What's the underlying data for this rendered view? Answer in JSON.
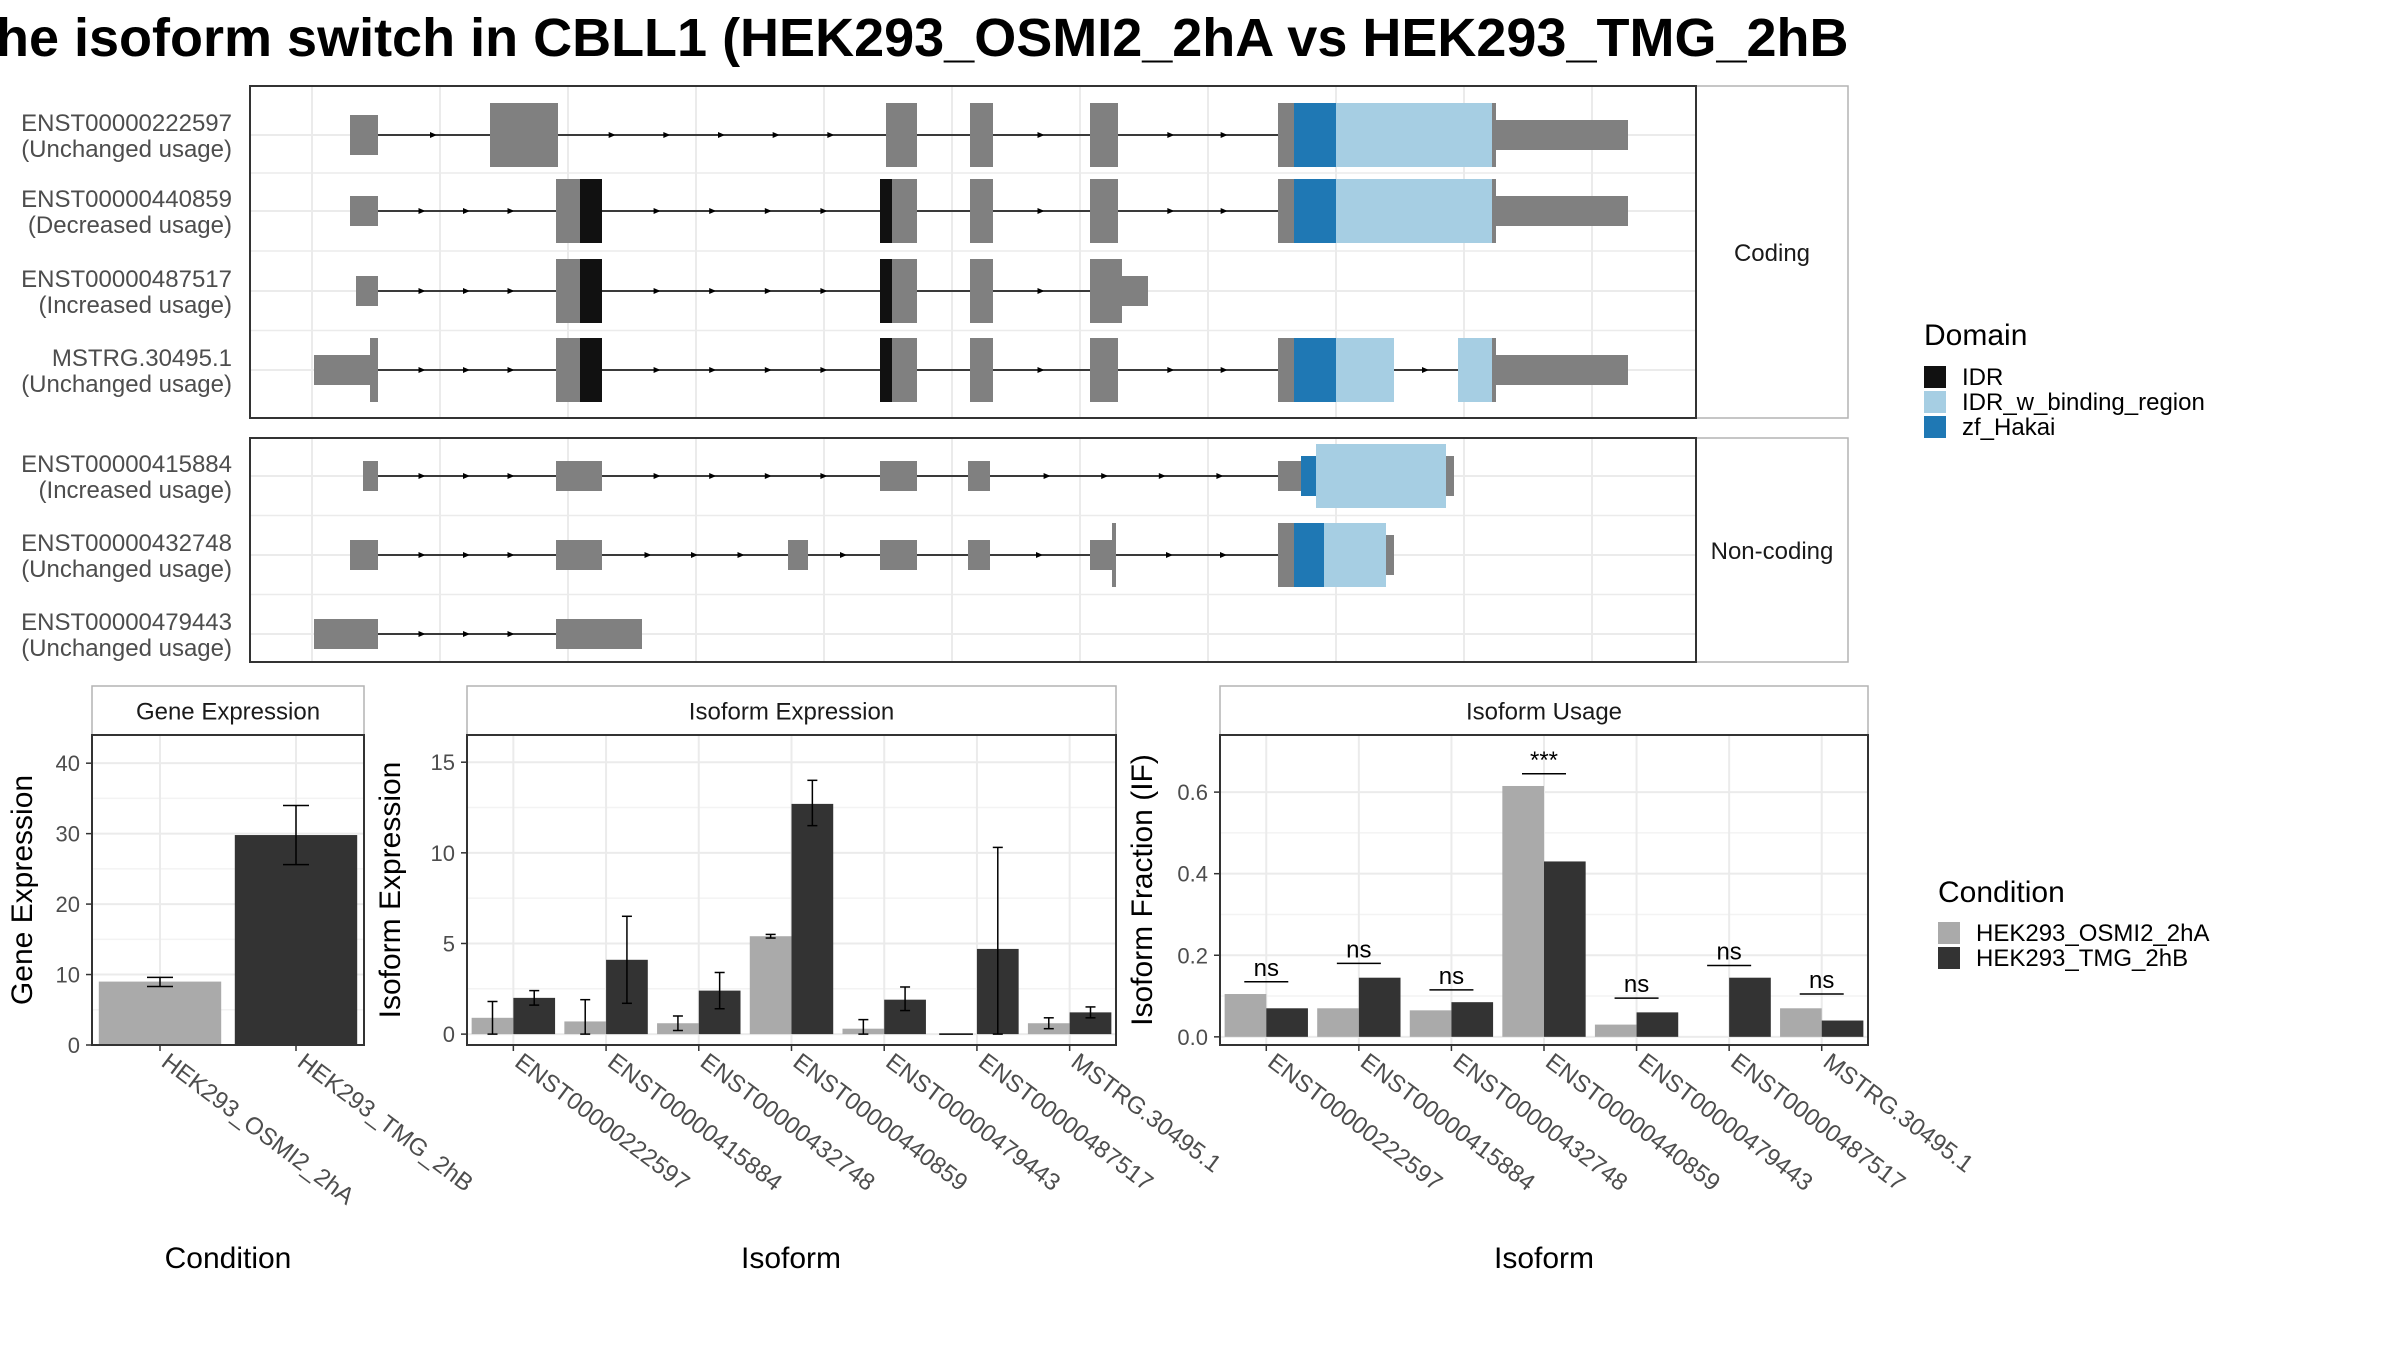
{
  "title": "he isoform switch in CBLL1 (HEK293_OSMI2_2hA vs HEK293_TMG_2hB",
  "structure": {
    "groups": [
      {
        "label": "Coding",
        "isoforms": [
          {
            "id": "ENST00000222597",
            "usage": "(Unchanged usage)"
          },
          {
            "id": "ENST00000440859",
            "usage": "(Decreased usage)"
          },
          {
            "id": "ENST00000487517",
            "usage": "(Increased usage)"
          },
          {
            "id": "MSTRG.30495.1",
            "usage": "(Unchanged usage)"
          }
        ]
      },
      {
        "label": "Non-coding",
        "isoforms": [
          {
            "id": "ENST00000415884",
            "usage": "(Increased usage)"
          },
          {
            "id": "ENST00000432748",
            "usage": "(Unchanged usage)"
          },
          {
            "id": "ENST00000479443",
            "usage": "(Unchanged usage)"
          }
        ]
      }
    ],
    "domain_legend": {
      "title": "Domain",
      "items": [
        {
          "label": "IDR",
          "color": "#111111"
        },
        {
          "label": "IDR_w_binding_region",
          "color": "#a6cee3"
        },
        {
          "label": "zf_Hakai",
          "color": "#1f78b4"
        }
      ]
    }
  },
  "chart_data": [
    {
      "type": "bar",
      "title": "Gene Expression",
      "xlabel": "Condition",
      "ylabel": "Gene Expression",
      "ylim": [
        0,
        44
      ],
      "yticks": [
        0,
        10,
        20,
        30,
        40
      ],
      "categories": [
        "HEK293_OSMI2_2hA",
        "HEK293_TMG_2hB"
      ],
      "values": [
        9.0,
        29.8
      ],
      "err_low": [
        8.3,
        25.6
      ],
      "err_high": [
        9.6,
        34.0
      ],
      "colors": [
        "#aaaaaa",
        "#333333"
      ]
    },
    {
      "type": "bar",
      "title": "Isoform Expression",
      "xlabel": "Isoform",
      "ylabel": "Isoform Expression",
      "ylim": [
        -0.6,
        16.5
      ],
      "yticks": [
        0,
        5,
        10,
        15
      ],
      "categories": [
        "ENST00000222597",
        "ENST00000415884",
        "ENST00000432748",
        "ENST00000440859",
        "ENST00000479443",
        "ENST00000487517",
        "MSTRG.30495.1"
      ],
      "series": [
        {
          "name": "HEK293_OSMI2_2hA",
          "values": [
            0.9,
            0.7,
            0.6,
            5.4,
            0.3,
            0.0,
            0.6
          ],
          "err_low": [
            0.0,
            0.0,
            0.2,
            5.3,
            0.0,
            0.0,
            0.3
          ],
          "err_high": [
            1.8,
            1.9,
            1.0,
            5.5,
            0.8,
            0.0,
            0.9
          ]
        },
        {
          "name": "HEK293_TMG_2hB",
          "values": [
            2.0,
            4.1,
            2.4,
            12.7,
            1.9,
            4.7,
            1.2
          ],
          "err_low": [
            1.6,
            1.7,
            1.4,
            11.5,
            1.3,
            0.0,
            0.9
          ],
          "err_high": [
            2.4,
            6.5,
            3.4,
            14.0,
            2.6,
            10.3,
            1.5
          ]
        }
      ]
    },
    {
      "type": "bar",
      "title": "Isoform Usage",
      "xlabel": "Isoform",
      "ylabel": "Isoform Fraction (IF)",
      "ylim": [
        -0.02,
        0.74
      ],
      "yticks": [
        "0.0",
        "0.2",
        "0.4",
        "0.6"
      ],
      "categories": [
        "ENST00000222597",
        "ENST00000415884",
        "ENST00000432748",
        "ENST00000440859",
        "ENST00000479443",
        "ENST00000487517",
        "MSTRG.30495.1"
      ],
      "series": [
        {
          "name": "HEK293_OSMI2_2hA",
          "values": [
            0.105,
            0.07,
            0.065,
            0.615,
            0.03,
            0.0,
            0.07
          ]
        },
        {
          "name": "HEK293_TMG_2hB",
          "values": [
            0.07,
            0.145,
            0.085,
            0.43,
            0.06,
            0.145,
            0.04
          ]
        }
      ],
      "significance": [
        "ns",
        "ns",
        "ns",
        "***",
        "ns",
        "ns",
        "ns"
      ],
      "sig_y": [
        0.135,
        0.18,
        0.115,
        0.645,
        0.095,
        0.175,
        0.105
      ]
    }
  ],
  "condition_legend": {
    "title": "Condition",
    "items": [
      {
        "label": "HEK293_OSMI2_2hA",
        "color": "#aaaaaa"
      },
      {
        "label": "HEK293_TMG_2hB",
        "color": "#333333"
      }
    ]
  }
}
